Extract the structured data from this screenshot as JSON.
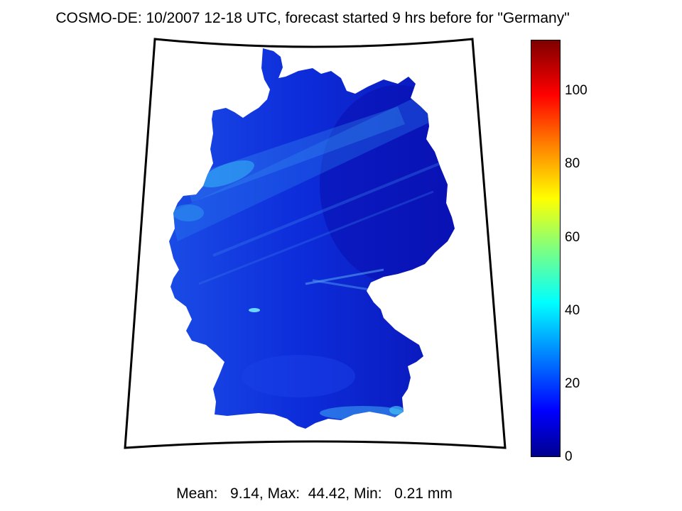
{
  "title": "COSMO-DE: 10/2007 12-18 UTC, forecast started 9 hrs before for \"Germany\"",
  "footer": "Mean:   9.14, Max:  44.42, Min:   0.21 mm",
  "stats": {
    "mean": 9.14,
    "max": 44.42,
    "min": 0.21,
    "unit": "mm"
  },
  "region": "Germany",
  "colorbar": {
    "colormap": "jet",
    "range": [
      0,
      114
    ],
    "ticks": [
      "0",
      "20",
      "40",
      "60",
      "80",
      "100"
    ]
  },
  "colors": {
    "dominant_field": "#0a2ee0",
    "dark_east": "#0a12b8",
    "light_band": "#2f8df0",
    "frame": "#000000"
  }
}
